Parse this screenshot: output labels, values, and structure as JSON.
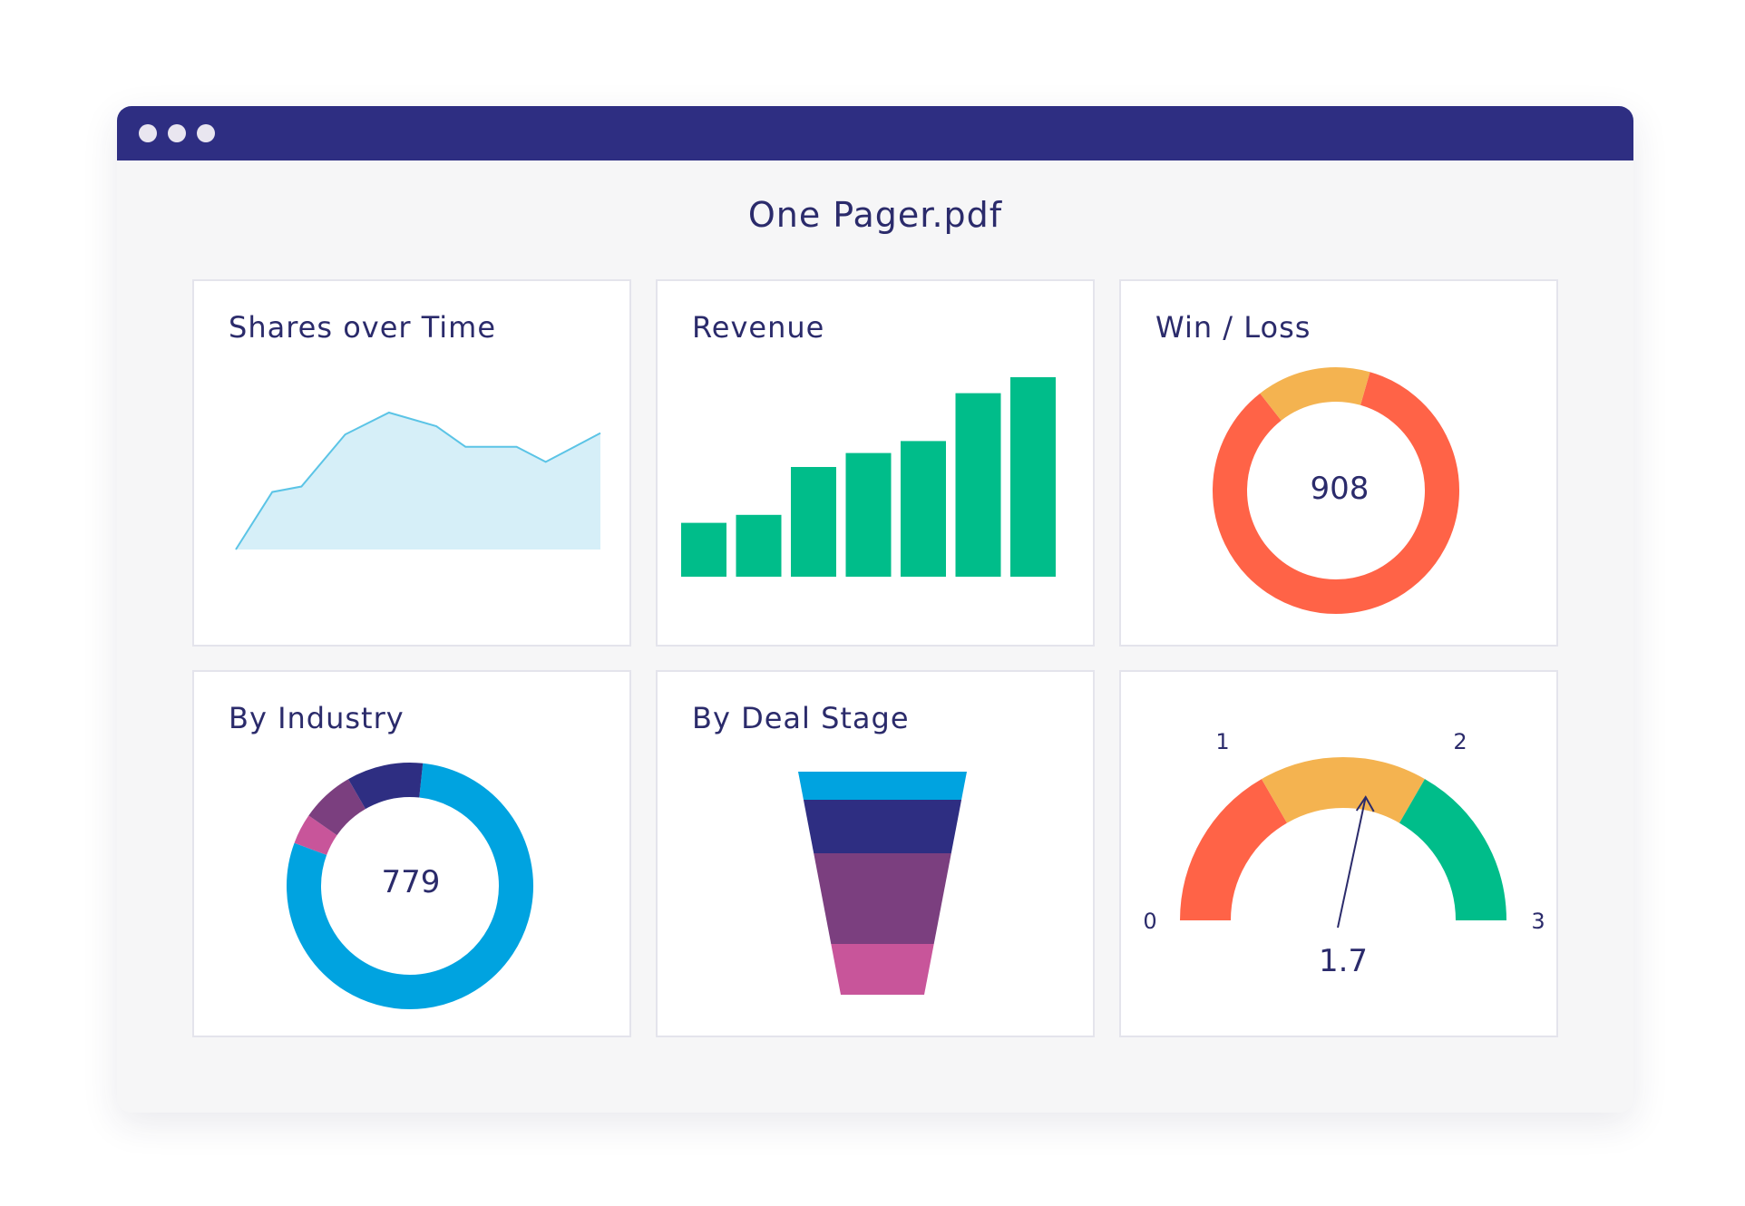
{
  "window": {
    "title": "One Pager.pdf",
    "titlebar_color": "#2e2e82"
  },
  "cards": {
    "shares": {
      "title": "Shares over Time"
    },
    "revenue": {
      "title": "Revenue"
    },
    "winloss": {
      "title": "Win / Loss",
      "center_value": "908"
    },
    "industry": {
      "title": "By Industry",
      "center_value": "779"
    },
    "dealstage": {
      "title": "By Deal Stage"
    },
    "gauge": {
      "title": "",
      "value_label": "1.7"
    }
  },
  "colors": {
    "area_fill": "#d6eff8",
    "area_line": "#5bc4e6",
    "bar": "#00bd8a",
    "orange": "#f4b350",
    "red": "#ff6347",
    "green": "#00bd8a",
    "blue": "#00a3e0",
    "navy": "#2e2e82",
    "purple": "#7b3f7f",
    "pink": "#c8559a"
  },
  "chart_data": [
    {
      "id": "shares",
      "type": "area",
      "x": [
        0,
        1,
        2,
        3,
        4,
        5,
        6,
        7,
        8,
        9
      ],
      "values": [
        0,
        42,
        46,
        84,
        100,
        90,
        75,
        75,
        64,
        85
      ],
      "ylim": [
        0,
        100
      ]
    },
    {
      "id": "revenue",
      "type": "bar",
      "values": [
        27,
        31,
        55,
        62,
        68,
        92,
        100
      ],
      "ylim": [
        0,
        100
      ]
    },
    {
      "id": "winloss",
      "type": "pie",
      "slices": [
        {
          "value": 85,
          "color": "#ff6347"
        },
        {
          "value": 15,
          "color": "#f4b350"
        }
      ],
      "center_label": "908"
    },
    {
      "id": "industry",
      "type": "pie",
      "slices": [
        {
          "value": 79,
          "color": "#00a3e0"
        },
        {
          "value": 4,
          "color": "#c8559a"
        },
        {
          "value": 7,
          "color": "#7b3f7f"
        },
        {
          "value": 10,
          "color": "#2e2e82"
        }
      ],
      "center_label": "779"
    },
    {
      "id": "dealstage",
      "type": "bar",
      "subtype": "funnel",
      "stages": [
        {
          "value": 100,
          "color": "#00a3e0"
        },
        {
          "value": 95,
          "color": "#2e2e82"
        },
        {
          "value": 78,
          "color": "#7b3f7f"
        },
        {
          "value": 67,
          "color": "#c8559a"
        }
      ]
    },
    {
      "id": "gauge",
      "type": "pie",
      "subtype": "gauge",
      "range": [
        0,
        3
      ],
      "ticks": [
        "0",
        "1",
        "2",
        "3"
      ],
      "bands": [
        {
          "from": 0,
          "to": 1,
          "color": "#ff6347"
        },
        {
          "from": 1,
          "to": 2,
          "color": "#f4b350"
        },
        {
          "from": 2,
          "to": 3,
          "color": "#00bd8a"
        }
      ],
      "value": 1.7,
      "value_label": "1.7"
    }
  ]
}
